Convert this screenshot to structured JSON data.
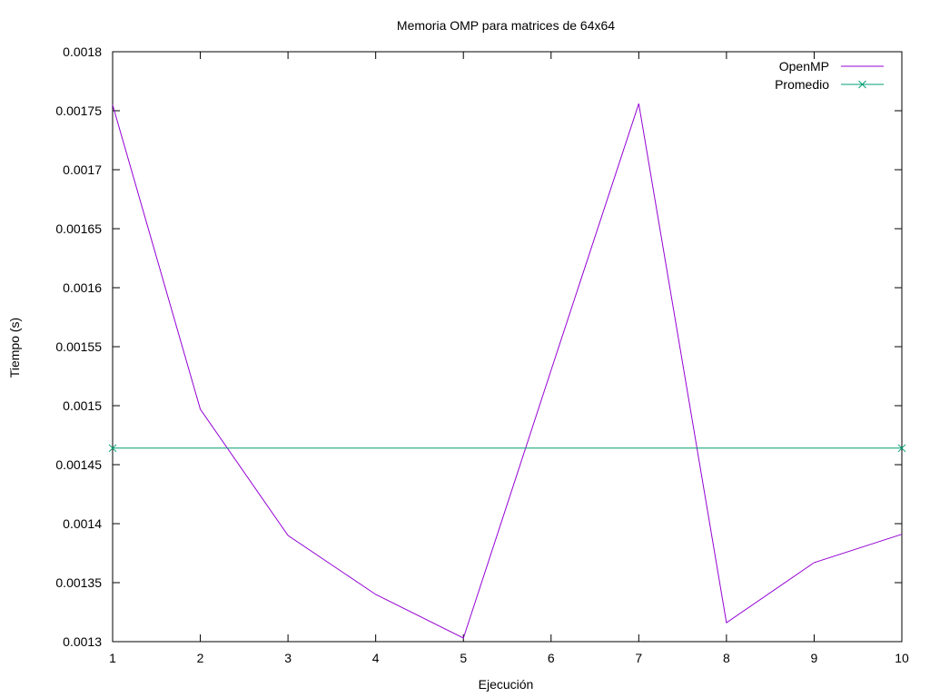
{
  "chart_data": {
    "type": "line",
    "title": "Memoria OMP para matrices de 64x64",
    "xlabel": "Ejecución",
    "ylabel": "Tiempo (s)",
    "x": [
      1,
      2,
      3,
      4,
      5,
      6,
      7,
      8,
      9,
      10
    ],
    "xticks": [
      "1",
      "2",
      "3",
      "4",
      "5",
      "6",
      "7",
      "8",
      "9",
      "10"
    ],
    "xlim": [
      1,
      10
    ],
    "ylim": [
      0.0013,
      0.0018
    ],
    "yticks": [
      "0.0013",
      "0.00135",
      "0.0014",
      "0.00145",
      "0.0015",
      "0.00155",
      "0.0016",
      "0.00165",
      "0.0017",
      "0.00175",
      "0.0018"
    ],
    "legend_position": "top-right",
    "grid": false,
    "series": [
      {
        "name": "OpenMP",
        "color": "#9400d3",
        "marker": "none",
        "values": [
          0.001755,
          0.001497,
          0.00139,
          0.00134,
          0.001303,
          0.00153,
          0.001756,
          0.001316,
          0.001367,
          0.001391
        ]
      },
      {
        "name": "Promedio",
        "color": "#009e73",
        "marker": "x",
        "values": [
          0.001464,
          0.001464,
          0.001464,
          0.001464,
          0.001464,
          0.001464,
          0.001464,
          0.001464,
          0.001464,
          0.001464
        ]
      }
    ]
  }
}
